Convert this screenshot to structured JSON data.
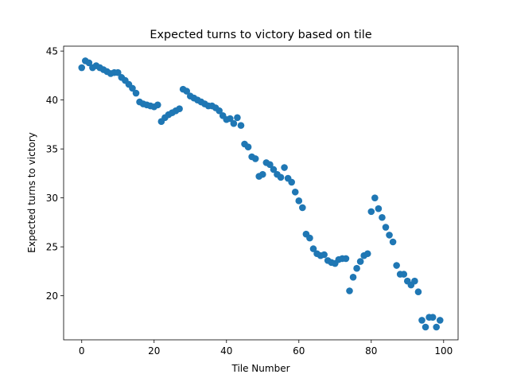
{
  "chart_data": {
    "type": "scatter",
    "title": "Expected turns to victory based on tile",
    "xlabel": "Tile Number",
    "ylabel": "Expected turns to victory",
    "xlim": [
      -5,
      104
    ],
    "ylim": [
      15.5,
      45.5
    ],
    "xticks": [
      0,
      20,
      40,
      60,
      80,
      100
    ],
    "yticks": [
      20,
      25,
      30,
      35,
      40,
      45
    ],
    "grid": false,
    "marker_color": "#1f77b4",
    "series": [
      {
        "x": [
          0,
          1,
          2,
          3,
          4,
          5,
          6,
          7,
          8,
          9,
          10,
          11,
          12,
          13,
          14,
          15,
          16,
          17,
          18,
          19,
          20,
          21,
          22,
          23,
          24,
          25,
          26,
          27,
          28,
          29,
          30,
          31,
          32,
          33,
          34,
          35,
          36,
          37,
          38,
          39,
          40,
          41,
          42,
          43,
          44,
          45,
          46,
          47,
          48,
          49,
          50,
          51,
          52,
          53,
          54,
          55,
          56,
          57,
          58,
          59,
          60,
          61,
          62,
          63,
          64,
          65,
          66,
          67,
          68,
          69,
          70,
          71,
          72,
          73,
          74,
          75,
          76,
          77,
          78,
          79,
          80,
          81,
          82,
          83,
          84,
          85,
          86,
          87,
          88,
          89,
          90,
          91,
          92,
          93,
          94,
          95,
          96,
          97,
          98,
          99
        ],
        "y": [
          43.3,
          44.0,
          43.8,
          43.3,
          43.5,
          43.3,
          43.1,
          42.9,
          42.7,
          42.8,
          42.8,
          42.3,
          42.0,
          41.6,
          41.2,
          40.7,
          39.8,
          39.6,
          39.5,
          39.4,
          39.3,
          39.5,
          37.8,
          38.2,
          38.5,
          38.7,
          38.9,
          39.1,
          41.1,
          40.9,
          40.4,
          40.2,
          40.0,
          39.8,
          39.6,
          39.4,
          39.4,
          39.2,
          38.9,
          38.4,
          38.0,
          38.1,
          37.6,
          38.2,
          37.4,
          35.5,
          35.2,
          34.2,
          34.0,
          32.2,
          32.4,
          33.6,
          33.4,
          32.9,
          32.4,
          32.1,
          33.1,
          32.0,
          31.6,
          30.6,
          29.7,
          29.0,
          26.3,
          25.9,
          24.8,
          24.3,
          24.1,
          24.2,
          23.6,
          23.4,
          23.3,
          23.7,
          23.8,
          23.8,
          20.5,
          21.9,
          22.8,
          23.5,
          24.1,
          24.3,
          28.6,
          30.0,
          28.9,
          28.0,
          27.0,
          26.2,
          25.5,
          23.1,
          22.2,
          22.2,
          21.5,
          21.1,
          21.5,
          20.4,
          17.5,
          16.8,
          17.8,
          17.8,
          16.8,
          17.5
        ]
      }
    ]
  }
}
